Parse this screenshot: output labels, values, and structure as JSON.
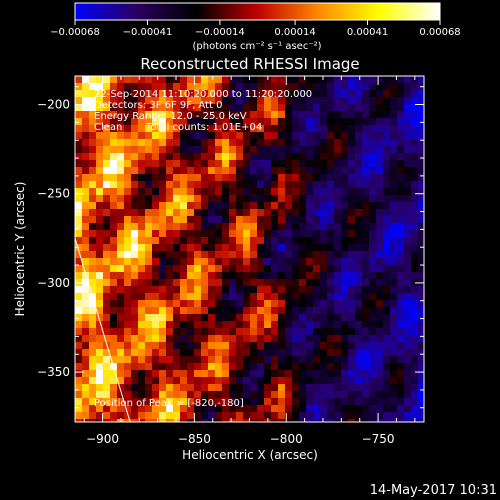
{
  "chart_data": {
    "type": "heatmap",
    "title": "Reconstructed RHESSI Image",
    "xlabel": "Heliocentric X (arcsec)",
    "ylabel": "Heliocentric Y (arcsec)",
    "xlim": [
      -915,
      -725
    ],
    "ylim": [
      -378,
      -184
    ],
    "x_ticks": [
      -900,
      -850,
      -800,
      -750
    ],
    "x_tick_labels": [
      "−900",
      "−850",
      "−800",
      "−750"
    ],
    "y_ticks": [
      -200,
      -250,
      -300,
      -350
    ],
    "y_tick_labels": [
      "−200",
      "−250",
      "−300",
      "−350"
    ],
    "colorbar": {
      "range": [
        -0.00068,
        0.00068
      ],
      "ticks": [
        -0.00068,
        -0.00041,
        -0.00014,
        0.00014,
        0.00041,
        0.00068
      ],
      "tick_labels": [
        "−0.00068",
        "−0.00041",
        "−0.00014",
        "0.00014",
        "0.00041",
        "0.00068"
      ],
      "unit_text": "(photons cm⁻² s⁻¹ asec⁻²)",
      "colors": [
        "#0000ff",
        "#2a0060",
        "#000000",
        "#c00000",
        "#ff8800",
        "#ffff00",
        "#ffffff"
      ]
    },
    "annotations": {
      "time_range": "22-Sep-2014 11:10:20.000 to 11:20:20.000",
      "detectors": "Detectors: 3F 6F 9F, Att 0",
      "energy_range": "Energy Range: 12.0 - 25.0 keV",
      "method": "Clean",
      "counts": "Total counts: 1.01E+04",
      "peak": "Position of Peak = [-820,-180]"
    },
    "limb_line": {
      "x": [
        -915,
        -885
      ],
      "y": [
        -275,
        -378
      ]
    }
  },
  "footer": {
    "timestamp": "14-May-2017 10:31"
  }
}
